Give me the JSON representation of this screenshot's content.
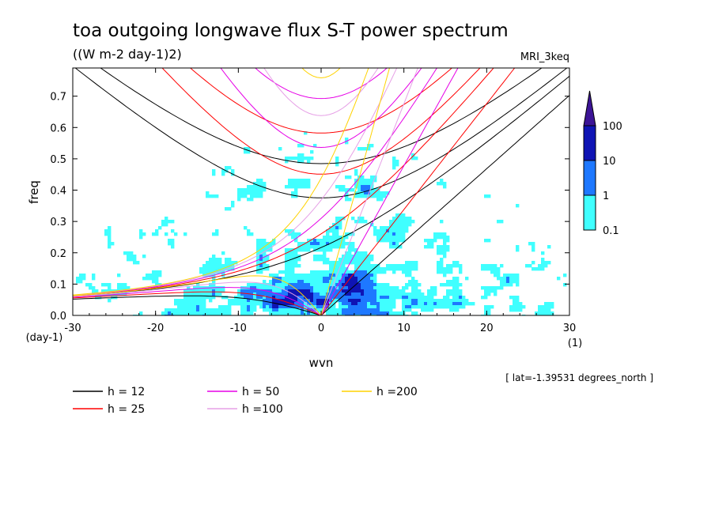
{
  "chart_data": {
    "type": "heatmap",
    "title": "toa outgoing longwave flux S-T power spectrum",
    "subtitle": "((W m-2 day-1)2)",
    "model_label": "MRI_3keq",
    "xlabel": "wvn",
    "ylabel": "freq",
    "x_unit": "(1)",
    "y_unit": "(day-1)",
    "xlim": [
      -30,
      30
    ],
    "ylim": [
      0,
      0.79
    ],
    "x_ticks": [
      -30,
      -20,
      -10,
      0,
      10,
      20,
      30
    ],
    "y_ticks": [
      0.0,
      0.1,
      0.2,
      0.3,
      0.4,
      0.5,
      0.6,
      0.7
    ],
    "x_tick_labels": [
      "-30",
      "-20",
      "-10",
      "0",
      "10",
      "20",
      "30"
    ],
    "y_tick_labels": [
      "0.0",
      "0.1",
      "0.2",
      "0.3",
      "0.4",
      "0.5",
      "0.6",
      "0.7"
    ],
    "latitude_note": "[ lat=-1.39531 degrees_north ]",
    "colorbar": {
      "levels": [
        "0.1",
        "1",
        "10",
        "100"
      ],
      "colors": [
        "#40ffff",
        "#1e78ff",
        "#0f14b4",
        "#3c1496"
      ]
    },
    "dispersion_curves": [
      {
        "name": "h = 12",
        "h": 12,
        "color": "#000000"
      },
      {
        "name": "h = 25",
        "h": 25,
        "color": "#ff0000"
      },
      {
        "name": "h = 50",
        "h": 50,
        "color": "#e600e6"
      },
      {
        "name": "h =100",
        "h": 100,
        "color": "#e6a0e6"
      },
      {
        "name": "h =200",
        "h": 200,
        "color": "#ffd200"
      }
    ]
  }
}
